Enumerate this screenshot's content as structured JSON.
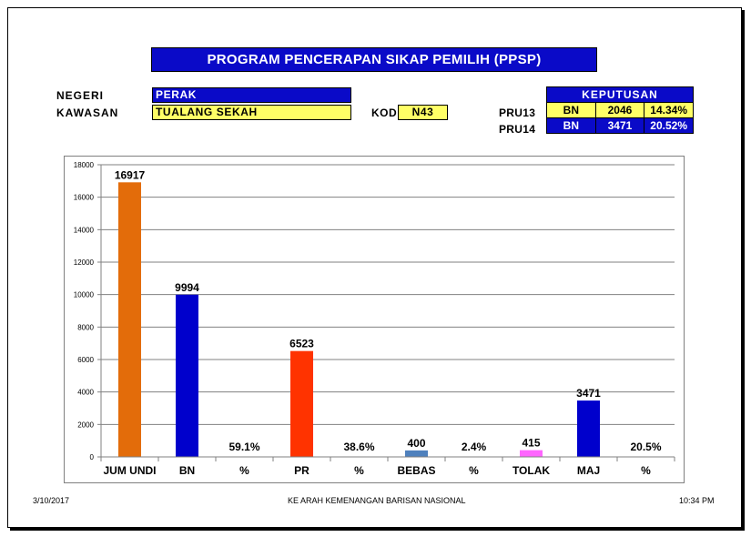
{
  "title": "PROGRAM PENCERAPAN SIKAP PEMILIH (PPSP)",
  "negeri": {
    "label": "NEGERI",
    "value": "PERAK"
  },
  "kawasan": {
    "label": "KAWASAN",
    "value": "TUALANG SEKAH"
  },
  "kod": {
    "label": "KOD",
    "value": "N43"
  },
  "keputusan": {
    "header": "KEPUTUSAN",
    "rows": [
      {
        "label": "PRU13",
        "party": "BN",
        "votes": "2046",
        "pct": "14.34%"
      },
      {
        "label": "PRU14",
        "party": "BN",
        "votes": "3471",
        "pct": "20.52%"
      }
    ]
  },
  "colors": {
    "blue": "#0a0ac8",
    "yellow": "#ffff66"
  },
  "chart_data": {
    "type": "bar",
    "categories": [
      "JUM UNDI",
      "BN",
      "%",
      "PR",
      "%",
      "BEBAS",
      "%",
      "TOLAK",
      "MAJ",
      "%"
    ],
    "values": [
      16917,
      9994,
      null,
      6523,
      null,
      400,
      null,
      415,
      3471,
      null
    ],
    "labels": [
      "16917",
      "9994",
      "59.1%",
      "6523",
      "38.6%",
      "400",
      "2.4%",
      "415",
      "3471",
      "20.5%"
    ],
    "colors": [
      "#e36c0a",
      "#0000cc",
      null,
      "#ff3300",
      null,
      "#4f81bd",
      null,
      "#ff66ff",
      "#0000cc",
      null
    ],
    "ylim": [
      0,
      18000
    ],
    "yticks": [
      0,
      2000,
      4000,
      6000,
      8000,
      10000,
      12000,
      14000,
      16000,
      18000
    ],
    "grid": true
  },
  "footer": {
    "date": "3/10/2017",
    "center": "KE ARAH KEMENANGAN BARISAN NASIONAL",
    "time": "10:34 PM"
  }
}
